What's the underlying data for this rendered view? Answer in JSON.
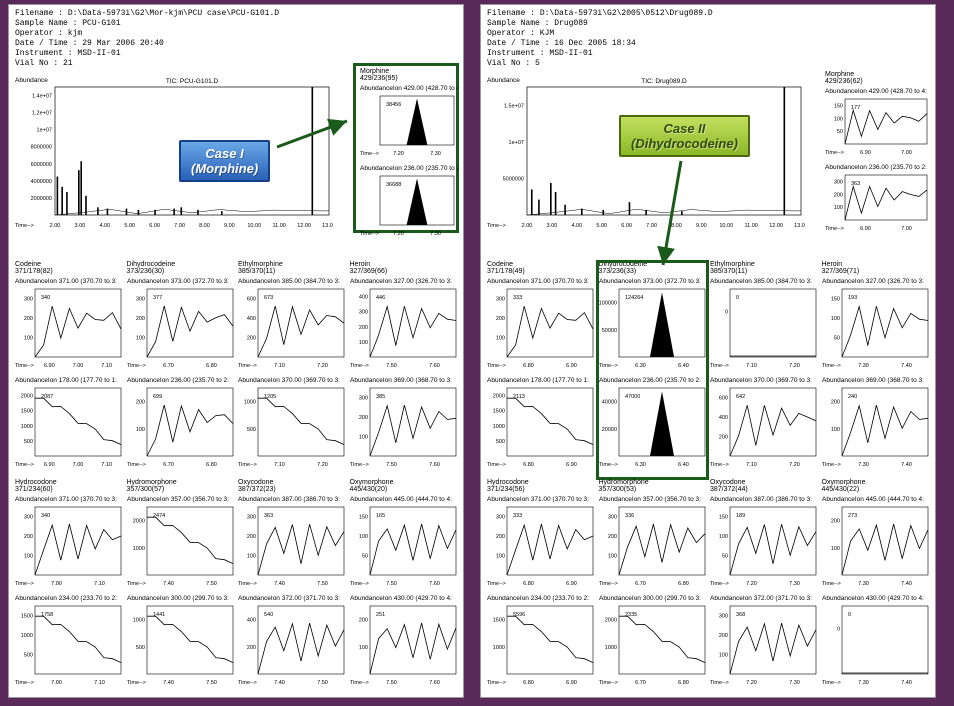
{
  "left": {
    "meta": {
      "filename": "D:\\Data-5973i\\G2\\Mor-kjm\\PCU case\\PCU-G101.D",
      "sample": "Sample Name : PCU-G101",
      "operator": "Operator : kjm",
      "datetime": "Date / Time : 29 Mar 2006  20:40",
      "instrument": "Instrument : MSD-II-01",
      "vial": "Vial No : 21"
    },
    "tic": {
      "title": "TIC: PCU-G101.D",
      "ylabel": "Abundance",
      "xlabel": "Time-->",
      "yticks": [
        "2000000",
        "4000000",
        "6000000",
        "8000000",
        "1e+07",
        "1.2e+07",
        "1.4e+07"
      ],
      "xticks": [
        "2.00",
        "3.00",
        "4.00",
        "5.00",
        "6.00",
        "7.00",
        "8.00",
        "9.00",
        "10.00",
        "11.00",
        "12.00",
        "13.00"
      ],
      "peaks": [
        {
          "x": 2.1,
          "h": 0.3
        },
        {
          "x": 2.3,
          "h": 0.22
        },
        {
          "x": 2.5,
          "h": 0.18
        },
        {
          "x": 3.0,
          "h": 0.35
        },
        {
          "x": 3.1,
          "h": 0.42
        },
        {
          "x": 3.3,
          "h": 0.15
        },
        {
          "x": 3.8,
          "h": 0.06
        },
        {
          "x": 4.2,
          "h": 0.05
        },
        {
          "x": 5.0,
          "h": 0.05
        },
        {
          "x": 5.5,
          "h": 0.04
        },
        {
          "x": 6.2,
          "h": 0.04
        },
        {
          "x": 7.0,
          "h": 0.05
        },
        {
          "x": 7.3,
          "h": 0.06
        },
        {
          "x": 8.0,
          "h": 0.04
        },
        {
          "x": 9.0,
          "h": 0.03
        },
        {
          "x": 12.8,
          "h": 1.0
        }
      ]
    },
    "boxed_pair": {
      "title": "Morphine",
      "sub": "429/236(95)",
      "top": {
        "lab": "AbundanceIon 429.00 (428.70 to 4:",
        "val": "38456",
        "xt": [
          "7.20",
          "7.30"
        ],
        "style": "filled"
      },
      "bot": {
        "lab": "AbundanceIon 236.00 (235.70 to 2:",
        "val": "36688",
        "xt": [
          "7.20",
          "7.30"
        ],
        "style": "filled"
      }
    },
    "callout": {
      "line1": "Case I",
      "line2": "(Morphine)"
    },
    "grid": [
      [
        {
          "title": "Codeine",
          "sub": "371/178(82)",
          "top": {
            "lab": "AbundanceIon 371.00 (370.70 to 3:",
            "val": "340",
            "yt": [
              "100",
              "200",
              "300"
            ],
            "xt": [
              "6.90",
              "7.00",
              "7.10"
            ],
            "style": "ragged"
          },
          "bot": {
            "lab": "AbundanceIon 178.00 (177.70 to 1:",
            "val": "2087",
            "yt": [
              "500",
              "1000",
              "1500",
              "2000"
            ],
            "xt": [
              "6.90",
              "7.00",
              "7.10"
            ],
            "style": "decay"
          }
        },
        {
          "title": "Dihydrocodeine",
          "sub": "373/236(30)",
          "top": {
            "lab": "AbundanceIon 373.00 (372.70 to 3:",
            "val": "377",
            "yt": [
              "100",
              "200",
              "300"
            ],
            "xt": [
              "6.70",
              "6.80"
            ],
            "style": "ragged"
          },
          "bot": {
            "lab": "AbundanceIon 236.00 (235.70 to 2:",
            "val": "699",
            "yt": [
              "100",
              "200"
            ],
            "xt": [
              "6.70",
              "6.80"
            ],
            "style": "ragged"
          }
        },
        {
          "title": "Ethylmorphine",
          "sub": "385/370(11)",
          "top": {
            "lab": "AbundanceIon 385.00 (384.70 to 3:",
            "val": "673",
            "yt": [
              "200",
              "400",
              "600"
            ],
            "xt": [
              "7.10",
              "7.20"
            ],
            "style": "ragged"
          },
          "bot": {
            "lab": "AbundanceIon 370.00 (369.70 to 3:",
            "val": "1205",
            "yt": [
              "500",
              "1000"
            ],
            "xt": [
              "7.10",
              "7.20"
            ],
            "style": "decay"
          }
        },
        {
          "title": "Heroin",
          "sub": "327/369(66)",
          "top": {
            "lab": "AbundanceIon 327.00 (326.70 to 3:",
            "val": "446",
            "yt": [
              "100",
              "200",
              "300",
              "400"
            ],
            "xt": [
              "7.50",
              "7.60"
            ],
            "style": "ragged"
          },
          "bot": {
            "lab": "AbundanceIon 369.00 (368.70 to 3:",
            "val": "385",
            "yt": [
              "100",
              "200",
              "300"
            ],
            "xt": [
              "7.50",
              "7.60"
            ],
            "style": "ragged"
          }
        }
      ],
      [
        {
          "title": "Hydrocodone",
          "sub": "371/234(60)",
          "top": {
            "lab": "AbundanceIon 371.00 (370.70 to 3:",
            "val": "340",
            "yt": [
              "100",
              "200",
              "300"
            ],
            "xt": [
              "7.00",
              "7.10"
            ],
            "style": "ragged"
          },
          "bot": {
            "lab": "AbundanceIon 234.00 (233.70 to 2:",
            "val": "1758",
            "yt": [
              "500",
              "1000",
              "1500"
            ],
            "xt": [
              "7.00",
              "7.10"
            ],
            "style": "decay"
          }
        },
        {
          "title": "Hydromorphone",
          "sub": "357/300(57)",
          "top": {
            "lab": "AbundanceIon 357.00 (356.70 to 3:",
            "val": "2474",
            "yt": [
              "1000",
              "2000"
            ],
            "xt": [
              "7.40",
              "7.50"
            ],
            "style": "decay"
          },
          "bot": {
            "lab": "AbundanceIon 300.00 (299.70 to 3:",
            "val": "1441",
            "yt": [
              "500",
              "1000"
            ],
            "xt": [
              "7.40",
              "7.50"
            ],
            "style": "decay"
          }
        },
        {
          "title": "Oxycodone",
          "sub": "387/372(23)",
          "top": {
            "lab": "AbundanceIon 387.00 (386.70 to 3:",
            "val": "363",
            "yt": [
              "100",
              "200",
              "300"
            ],
            "xt": [
              "7.40",
              "7.50"
            ],
            "style": "ragged"
          },
          "bot": {
            "lab": "AbundanceIon 372.00 (371.70 to 3:",
            "val": "540",
            "yt": [
              "200",
              "400"
            ],
            "xt": [
              "7.40",
              "7.50"
            ],
            "style": "ragged"
          }
        },
        {
          "title": "Oxymorphone",
          "sub": "445/430(20)",
          "top": {
            "lab": "AbundanceIon 445.00 (444.70 to 4:",
            "val": "165",
            "yt": [
              "50",
              "100",
              "150"
            ],
            "xt": [
              "7.50",
              "7.60"
            ],
            "style": "ragged"
          },
          "bot": {
            "lab": "AbundanceIon 430.00 (429.70 to 4:",
            "val": "251",
            "yt": [
              "100",
              "200"
            ],
            "xt": [
              "7.50",
              "7.60"
            ],
            "style": "ragged"
          }
        }
      ]
    ]
  },
  "right": {
    "meta": {
      "filename": "D:\\Data-5973i\\G2\\2005\\0512\\Drug089.D",
      "sample": "Sample Name : Drug089",
      "operator": "Operator : KJM",
      "datetime": "Date / Time : 16 Dec 2005  18:34",
      "instrument": "Instrument : MSD-II-01",
      "vial": "Vial No : 5"
    },
    "tic": {
      "title": "TIC: Drug089.D",
      "ylabel": "Abundance",
      "xlabel": "Time-->",
      "yticks": [
        "5000000",
        "1e+07",
        "1.5e+07"
      ],
      "xticks": [
        "2.00",
        "3.00",
        "4.00",
        "5.00",
        "6.00",
        "7.00",
        "8.00",
        "9.00",
        "10.00",
        "11.00",
        "12.00",
        "13.00"
      ],
      "peaks": [
        {
          "x": 2.2,
          "h": 0.2
        },
        {
          "x": 2.5,
          "h": 0.12
        },
        {
          "x": 3.0,
          "h": 0.25
        },
        {
          "x": 3.2,
          "h": 0.18
        },
        {
          "x": 3.6,
          "h": 0.08
        },
        {
          "x": 4.3,
          "h": 0.05
        },
        {
          "x": 5.2,
          "h": 0.04
        },
        {
          "x": 6.3,
          "h": 0.1
        },
        {
          "x": 7.0,
          "h": 0.04
        },
        {
          "x": 8.5,
          "h": 0.03
        },
        {
          "x": 12.8,
          "h": 1.0
        }
      ]
    },
    "side_pair": {
      "title": "Morphine",
      "sub": "429/236(62)",
      "top": {
        "lab": "AbundanceIon 429.00 (428.70 to 4:",
        "val": "177",
        "yt": [
          "50",
          "100",
          "150"
        ],
        "xt": [
          "6.90",
          "7.00"
        ],
        "style": "ragged"
      },
      "bot": {
        "lab": "AbundanceIon 236.00 (235.70 to 2:",
        "val": "363",
        "yt": [
          "100",
          "200",
          "300"
        ],
        "xt": [
          "6.90",
          "7.00"
        ],
        "style": "ragged"
      }
    },
    "callout": {
      "line1": "Case II",
      "line2": "(Dihydrocodeine)"
    },
    "grid": [
      [
        {
          "title": "Codeine",
          "sub": "371/178(49)",
          "top": {
            "lab": "AbundanceIon 371.00 (370.70 to 3:",
            "val": "333",
            "yt": [
              "100",
              "200",
              "300"
            ],
            "xt": [
              "6.80",
              "6.90"
            ],
            "style": "ragged"
          },
          "bot": {
            "lab": "AbundanceIon 178.00 (177.70 to 1:",
            "val": "2113",
            "yt": [
              "500",
              "1000",
              "1500",
              "2000"
            ],
            "xt": [
              "6.80",
              "6.90"
            ],
            "style": "decay"
          }
        },
        {
          "title": "Dihydrocodeine",
          "sub": "373/236(33)",
          "boxed": true,
          "top": {
            "lab": "AbundanceIon 373.00 (372.70 to 3:",
            "val": "124264",
            "yt": [
              "50000",
              "100000"
            ],
            "xt": [
              "6.30",
              "6.40"
            ],
            "style": "filled"
          },
          "bot": {
            "lab": "AbundanceIon 236.00 (235.70 to 2:",
            "val": "47000",
            "yt": [
              "20000",
              "40000"
            ],
            "xt": [
              "6.30",
              "6.40"
            ],
            "style": "filled"
          }
        },
        {
          "title": "Ethylmorphine",
          "sub": "385/370(11)",
          "top": {
            "lab": "AbundanceIon 385.00 (384.70 to 3:",
            "val": "0",
            "yt": [
              "0"
            ],
            "xt": [
              "7.10",
              "7.20"
            ],
            "style": "flat"
          },
          "bot": {
            "lab": "AbundanceIon 370.00 (369.70 to 3:",
            "val": "642",
            "yt": [
              "200",
              "400",
              "600"
            ],
            "xt": [
              "7.10",
              "7.20"
            ],
            "style": "ragged"
          }
        },
        {
          "title": "Heroin",
          "sub": "327/369(71)",
          "top": {
            "lab": "AbundanceIon 327.00 (326.70 to 3:",
            "val": "193",
            "yt": [
              "50",
              "100",
              "150"
            ],
            "xt": [
              "7.30",
              "7.40"
            ],
            "style": "ragged"
          },
          "bot": {
            "lab": "AbundanceIon 369.00 (368.70 to 3:",
            "val": "240",
            "yt": [
              "100",
              "200"
            ],
            "xt": [
              "7.30",
              "7.40"
            ],
            "style": "ragged"
          }
        }
      ],
      [
        {
          "title": "Hydrocodone",
          "sub": "371/234(56)",
          "top": {
            "lab": "AbundanceIon 371.00 (370.70 to 3:",
            "val": "333",
            "yt": [
              "100",
              "200",
              "300"
            ],
            "xt": [
              "6.80",
              "6.90"
            ],
            "style": "ragged"
          },
          "bot": {
            "lab": "AbundanceIon 234.00 (233.70 to 2:",
            "val": "5596",
            "yt": [
              "1000",
              "1500"
            ],
            "xt": [
              "6.80",
              "6.90"
            ],
            "style": "decay"
          }
        },
        {
          "title": "Hydromorphone",
          "sub": "357/300(53)",
          "top": {
            "lab": "AbundanceIon 357.00 (356.70 to 3:",
            "val": "336",
            "yt": [
              "100",
              "200",
              "300"
            ],
            "xt": [
              "6.70",
              "6.80"
            ],
            "style": "ragged"
          },
          "bot": {
            "lab": "AbundanceIon 300.00 (299.70 to 3:",
            "val": "2335",
            "yt": [
              "1000",
              "2000"
            ],
            "xt": [
              "6.70",
              "6.80"
            ],
            "style": "decay"
          }
        },
        {
          "title": "Oxycodone",
          "sub": "387/372(44)",
          "top": {
            "lab": "AbundanceIon 387.00 (386.70 to 3:",
            "val": "189",
            "yt": [
              "50",
              "100",
              "150"
            ],
            "xt": [
              "7.20",
              "7.30"
            ],
            "style": "ragged"
          },
          "bot": {
            "lab": "AbundanceIon 372.00 (371.70 to 3:",
            "val": "368",
            "yt": [
              "100",
              "200",
              "300"
            ],
            "xt": [
              "7.20",
              "7.30"
            ],
            "style": "ragged"
          }
        },
        {
          "title": "Oxymorphone",
          "sub": "445/430(22)",
          "top": {
            "lab": "AbundanceIon 445.00 (444.70 to 4:",
            "val": "273",
            "yt": [
              "100",
              "200"
            ],
            "xt": [
              "7.30",
              "7.40"
            ],
            "style": "ragged"
          },
          "bot": {
            "lab": "AbundanceIon 430.00 (429.70 to 4:",
            "val": "0",
            "yt": [
              "0"
            ],
            "xt": [
              "7.30",
              "7.40"
            ],
            "style": "flat"
          }
        }
      ]
    ]
  },
  "colors": {
    "page_bg": "#5a2a5a",
    "panel_bg": "#ffffff",
    "axis": "#000000",
    "box": "#1a5a1a",
    "arrow": "#1a5a1a",
    "callout_blue": "#2a60b8",
    "callout_green": "#8ab828"
  }
}
